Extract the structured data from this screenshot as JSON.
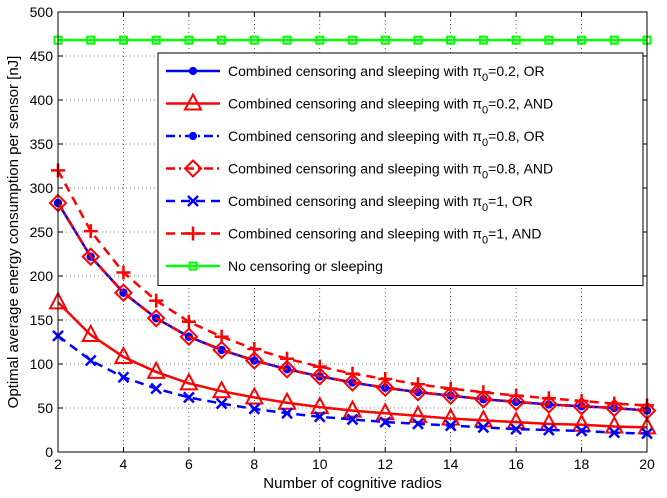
{
  "chart_data": {
    "type": "line",
    "xlabel": "Number of cognitive radios",
    "ylabel": "Optimal average energy consumption per sensor [nJ]",
    "xlim": [
      2,
      20
    ],
    "ylim": [
      0,
      500
    ],
    "xticks": [
      2,
      4,
      6,
      8,
      10,
      12,
      14,
      16,
      18,
      20
    ],
    "yticks": [
      0,
      50,
      100,
      150,
      200,
      250,
      300,
      350,
      400,
      450,
      500
    ],
    "grid": true,
    "legend_position": "top-right",
    "x": [
      2,
      3,
      4,
      5,
      6,
      7,
      8,
      9,
      10,
      11,
      12,
      13,
      14,
      15,
      16,
      17,
      18,
      19,
      20
    ],
    "series": [
      {
        "name": "Combined censoring and sleeping with π0=0.2, OR",
        "label_prefix": "Combined censoring and sleeping with π",
        "label_sub": "0",
        "label_suffix": "=0.2, OR",
        "color": "#0000ff",
        "dash": "solid",
        "marker": "dot",
        "values": [
          283,
          222,
          181,
          152,
          131,
          116,
          104,
          94,
          86,
          79,
          73,
          68,
          64,
          60,
          57,
          54,
          52,
          50,
          47
        ]
      },
      {
        "name": "Combined censoring and sleeping with π0=0.2, AND",
        "label_prefix": "Combined censoring and sleeping with π",
        "label_sub": "0",
        "label_suffix": "=0.2, AND",
        "color": "#ff0000",
        "dash": "solid",
        "marker": "triangle",
        "values": [
          170,
          133,
          108,
          91,
          78,
          69,
          62,
          56,
          51,
          47,
          44,
          41,
          38,
          36,
          34,
          32,
          31,
          29,
          28
        ]
      },
      {
        "name": "Combined censoring and sleeping with π0=0.8, OR",
        "label_prefix": "Combined censoring and sleeping with π",
        "label_sub": "0",
        "label_suffix": "=0.8, OR",
        "color": "#0000ff",
        "dash": "dashdot",
        "marker": "dot",
        "values": [
          283,
          222,
          181,
          152,
          131,
          116,
          104,
          94,
          86,
          79,
          73,
          68,
          64,
          60,
          57,
          54,
          52,
          50,
          47
        ]
      },
      {
        "name": "Combined censoring and sleeping with π0=0.8, AND",
        "label_prefix": "Combined censoring and sleeping with π",
        "label_sub": "0",
        "label_suffix": "=0.8, AND",
        "color": "#ff0000",
        "dash": "dashdot",
        "marker": "diamond",
        "values": [
          283,
          222,
          181,
          152,
          131,
          116,
          104,
          94,
          86,
          79,
          73,
          68,
          64,
          60,
          57,
          54,
          52,
          50,
          47
        ]
      },
      {
        "name": "Combined censoring and sleeping with π0=1, OR",
        "label_prefix": "Combined censoring and sleeping with π",
        "label_sub": "0",
        "label_suffix": "=1, OR",
        "color": "#0000ff",
        "dash": "dashed",
        "marker": "x",
        "values": [
          132,
          104,
          85,
          72,
          62,
          55,
          49,
          44,
          40,
          37,
          34,
          32,
          30,
          28,
          26,
          25,
          24,
          22,
          21
        ]
      },
      {
        "name": "Combined censoring and sleeping with π0=1, AND",
        "label_prefix": "Combined censoring and sleeping with π",
        "label_sub": "0",
        "label_suffix": "=1, AND",
        "color": "#ff0000",
        "dash": "dashed",
        "marker": "plus",
        "values": [
          320,
          251,
          204,
          172,
          148,
          131,
          117,
          106,
          97,
          89,
          83,
          77,
          72,
          68,
          64,
          61,
          58,
          55,
          53
        ]
      },
      {
        "name": "No censoring or sleeping",
        "label_prefix": "No censoring or sleeping",
        "label_sub": "",
        "label_suffix": "",
        "color": "#00ff00",
        "dash": "solid",
        "marker": "square",
        "values": [
          468,
          468,
          468,
          468,
          468,
          468,
          468,
          468,
          468,
          468,
          468,
          468,
          468,
          468,
          468,
          468,
          468,
          468,
          468
        ]
      }
    ]
  }
}
